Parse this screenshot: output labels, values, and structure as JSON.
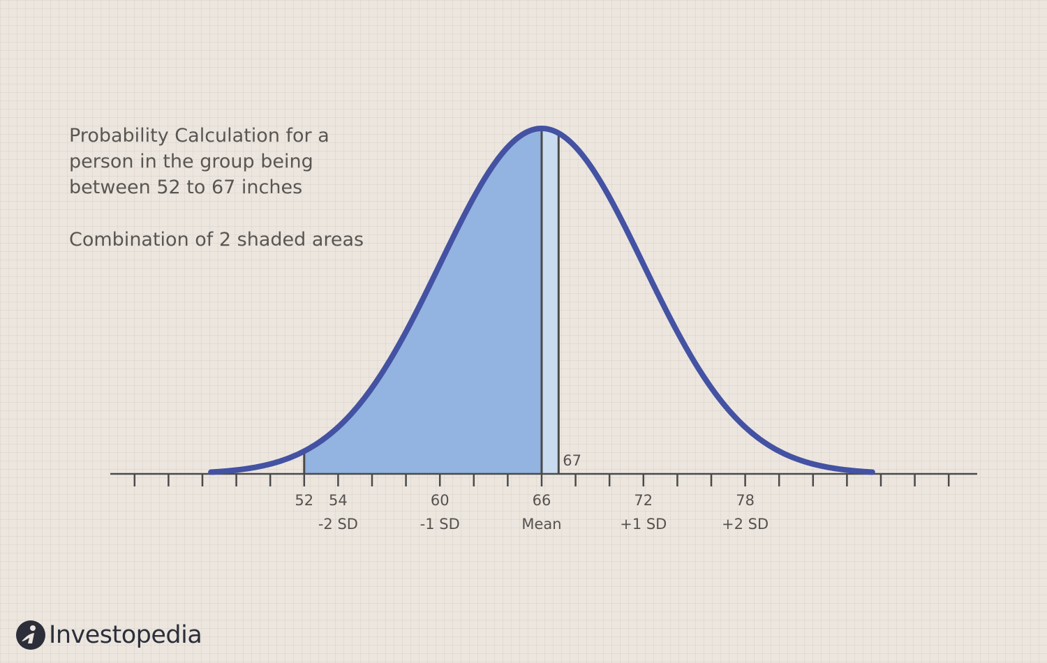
{
  "caption": {
    "title": "Probability Calculation for a person in the group being between 52 to 67 inches",
    "subtitle": "Combination of 2 shaded areas"
  },
  "brand": {
    "name": "Investopedia",
    "icon": "investopedia-logo-icon"
  },
  "colors": {
    "background": "#ece6df",
    "curve": "#4452a3",
    "shade_main": "#93b3e0",
    "shade_light": "#c9dbef",
    "axis": "#4a4a4a",
    "text": "#55524f"
  },
  "chart_data": {
    "type": "area",
    "distribution": "normal",
    "mean": 66,
    "sd": 6,
    "x_range": [
      46.5,
      85.5
    ],
    "axis_range": [
      41,
      91
    ],
    "tick_step": 2,
    "tick_labels": [
      {
        "x": 52,
        "label": "52",
        "sublabel": ""
      },
      {
        "x": 54,
        "label": "54",
        "sublabel": "-2 SD"
      },
      {
        "x": 60,
        "label": "60",
        "sublabel": "-1 SD"
      },
      {
        "x": 66,
        "label": "66",
        "sublabel": "Mean"
      },
      {
        "x": 72,
        "label": "72",
        "sublabel": "+1 SD"
      },
      {
        "x": 78,
        "label": "78",
        "sublabel": "+2 SD"
      }
    ],
    "shaded_areas": [
      {
        "from": 52,
        "to": 66,
        "color": "#93b3e0"
      },
      {
        "from": 66,
        "to": 67,
        "color": "#c9dbef"
      }
    ],
    "markers": [
      {
        "x": 52,
        "label": ""
      },
      {
        "x": 66,
        "label": ""
      },
      {
        "x": 67,
        "label": "67"
      }
    ],
    "grid": true
  }
}
